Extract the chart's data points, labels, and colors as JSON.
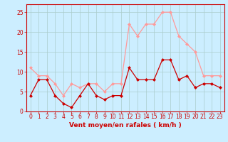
{
  "hours": [
    0,
    1,
    2,
    3,
    4,
    5,
    6,
    7,
    8,
    9,
    10,
    11,
    12,
    13,
    14,
    15,
    16,
    17,
    18,
    19,
    20,
    21,
    22,
    23
  ],
  "avg_wind": [
    4,
    8,
    8,
    4,
    2,
    1,
    4,
    7,
    4,
    3,
    4,
    4,
    11,
    8,
    8,
    8,
    13,
    13,
    8,
    9,
    6,
    7,
    7,
    6
  ],
  "gust_wind": [
    11,
    9,
    9,
    7,
    4,
    7,
    6,
    7,
    7,
    5,
    7,
    7,
    22,
    19,
    22,
    22,
    25,
    25,
    19,
    17,
    15,
    9,
    9,
    9
  ],
  "avg_color": "#cc0000",
  "gust_color": "#ff9999",
  "bg_color": "#cceeff",
  "grid_color": "#aacccc",
  "xlabel": "Vent moyen/en rafales ( km/h )",
  "xlabel_color": "#cc0000",
  "ylim": [
    0,
    27
  ],
  "yticks": [
    0,
    5,
    10,
    15,
    20,
    25
  ],
  "xticks": [
    0,
    1,
    2,
    3,
    4,
    5,
    6,
    7,
    8,
    9,
    10,
    11,
    12,
    13,
    14,
    15,
    16,
    17,
    18,
    19,
    20,
    21,
    22,
    23
  ],
  "tick_fontsize": 5.5,
  "xlabel_fontsize": 6.5,
  "marker": "D",
  "markersize": 2.0,
  "linewidth": 0.9
}
